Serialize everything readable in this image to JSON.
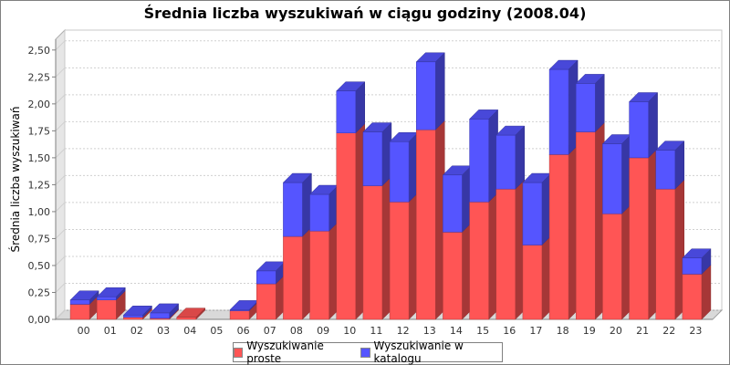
{
  "chart_data": {
    "type": "bar",
    "stacked": true,
    "three_d": true,
    "title": "Średnia liczba wyszukiwań w ciągu godziny (2008.04)",
    "xlabel": "",
    "ylabel": "Średnia liczba wyszukiwań",
    "ylim": [
      0,
      2.6
    ],
    "yticks": [
      "0,00",
      "0,25",
      "0,50",
      "0,75",
      "1,00",
      "1,25",
      "1,50",
      "1,75",
      "2,00",
      "2,25",
      "2,50"
    ],
    "ytick_values": [
      0,
      0.25,
      0.5,
      0.75,
      1.0,
      1.25,
      1.5,
      1.75,
      2.0,
      2.25,
      2.5
    ],
    "grid": true,
    "legend_position": "bottom",
    "categories": [
      "00",
      "01",
      "02",
      "03",
      "04",
      "05",
      "06",
      "07",
      "08",
      "09",
      "10",
      "11",
      "12",
      "13",
      "14",
      "15",
      "16",
      "17",
      "18",
      "19",
      "20",
      "21",
      "22",
      "23"
    ],
    "series": [
      {
        "name": "Wyszukiwanie proste",
        "color": "#FF5555",
        "values": [
          0.14,
          0.18,
          0.02,
          0.01,
          0.02,
          0.0,
          0.08,
          0.33,
          0.77,
          0.82,
          1.73,
          1.24,
          1.09,
          1.76,
          0.81,
          1.09,
          1.21,
          0.69,
          1.53,
          1.74,
          0.98,
          1.5,
          1.21,
          0.42
        ]
      },
      {
        "name": "Wyszukiwanie w katalogu",
        "color": "#5555FF",
        "values": [
          0.04,
          0.03,
          0.02,
          0.05,
          0.0,
          0.0,
          0.01,
          0.12,
          0.5,
          0.34,
          0.39,
          0.5,
          0.56,
          0.63,
          0.53,
          0.77,
          0.5,
          0.58,
          0.79,
          0.45,
          0.65,
          0.52,
          0.36,
          0.15
        ]
      }
    ]
  }
}
